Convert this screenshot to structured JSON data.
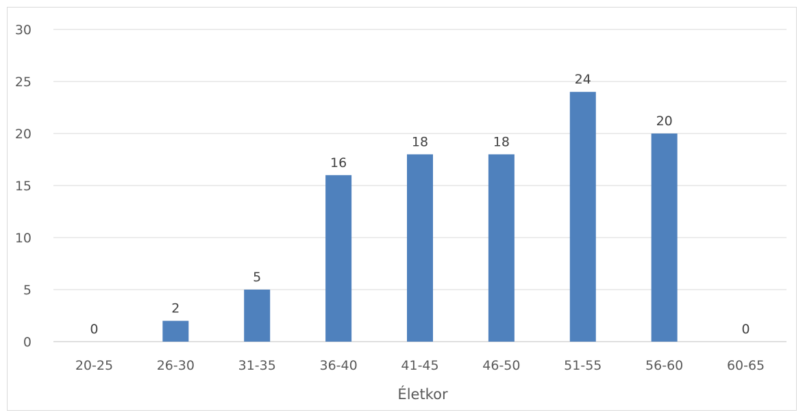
{
  "chart_data": {
    "type": "bar",
    "categories": [
      "20-25",
      "26-30",
      "31-35",
      "36-40",
      "41-45",
      "46-50",
      "51-55",
      "56-60",
      "60-65"
    ],
    "values": [
      0,
      2,
      5,
      16,
      18,
      18,
      24,
      20,
      0
    ],
    "data_labels": [
      "0",
      "2",
      "5",
      "16",
      "18",
      "18",
      "24",
      "20",
      "0"
    ],
    "xlabel": "Életkor",
    "ylabel": "",
    "ylim": [
      0,
      30
    ],
    "yticks": [
      "0",
      "5",
      "10",
      "15",
      "20",
      "25",
      "30"
    ],
    "grid": true,
    "legend": "none",
    "colors": {
      "bar": "#4f81bd",
      "grid": "#d9d9d9",
      "axis": "#bfbfbf"
    }
  }
}
